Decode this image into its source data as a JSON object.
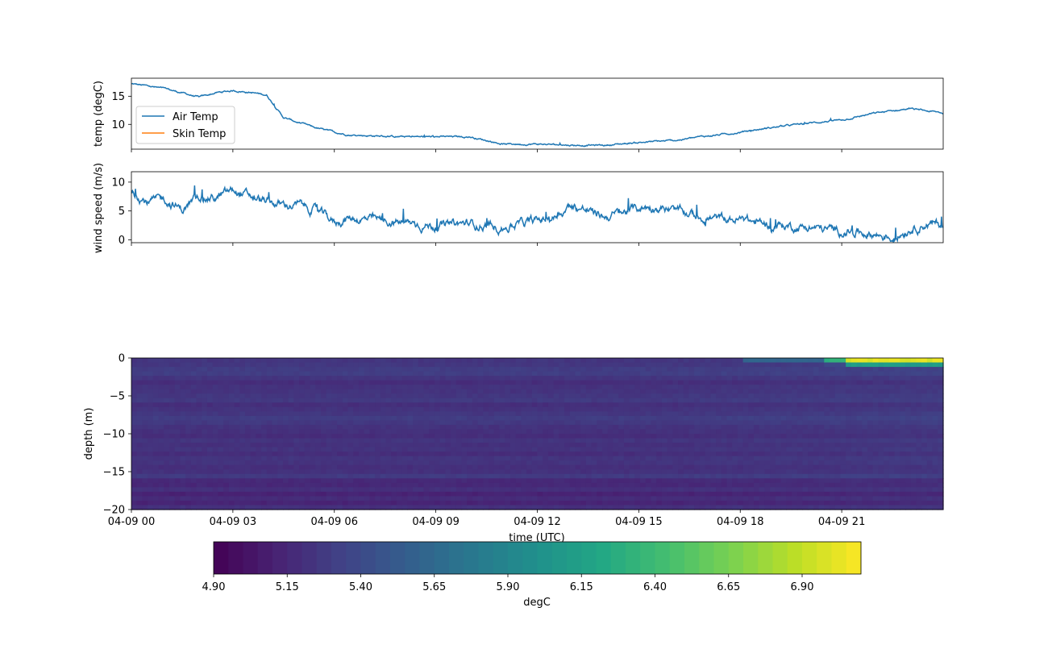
{
  "chart_data": [
    {
      "type": "line",
      "ylabel": "temp (degC)",
      "xlim": [
        "04-09 00",
        "04-10 00"
      ],
      "ylim": [
        5.6,
        18.2
      ],
      "yticks": [
        10,
        15
      ],
      "ytick_labels": [
        "10",
        "15"
      ],
      "legend": {
        "placement": "center-left",
        "entries": [
          "Air Temp",
          "Skin Temp"
        ]
      },
      "series": [
        {
          "name": "Air Temp",
          "color": "#1f77b4",
          "hour": [
            0,
            0.5,
            1,
            1.5,
            2,
            2.5,
            3,
            3.5,
            4,
            4.5,
            5,
            5.5,
            6,
            6.5,
            7,
            8,
            9,
            10,
            11,
            12,
            13,
            14,
            15,
            16,
            17,
            18,
            19,
            20,
            21,
            22,
            23,
            24
          ],
          "values": [
            17.2,
            16.8,
            16.3,
            15.6,
            14.8,
            15.6,
            16.0,
            15.7,
            15.2,
            11.2,
            10.2,
            9.3,
            8.6,
            8.1,
            8.0,
            7.8,
            7.8,
            7.8,
            6.5,
            6.5,
            6.3,
            6.3,
            6.8,
            7.1,
            7.9,
            8.6,
            9.5,
            10.2,
            10.8,
            12.0,
            12.8,
            12.0
          ]
        },
        {
          "name": "Skin Temp",
          "color": "#ff7f0e",
          "hour": [],
          "values": []
        }
      ]
    },
    {
      "type": "line",
      "ylabel": "wind speed (m/s)",
      "xlim": [
        "04-09 00",
        "04-10 00"
      ],
      "ylim": [
        -0.5,
        11.8
      ],
      "yticks": [
        0,
        5,
        10
      ],
      "ytick_labels": [
        "0",
        "5",
        "10"
      ],
      "series": [
        {
          "name": "",
          "color": "#1f77b4",
          "hour": [
            0,
            0.5,
            1,
            1.5,
            2,
            2.5,
            3,
            3.5,
            4,
            4.5,
            5,
            5.5,
            6,
            6.5,
            7,
            8,
            9,
            10,
            11,
            12,
            12.5,
            13,
            13.5,
            14,
            14.5,
            15,
            15.5,
            16,
            17,
            18,
            19,
            20,
            21,
            21.5,
            22,
            22.5,
            23,
            23.5,
            24
          ],
          "values": [
            8.5,
            6.5,
            7.0,
            5.2,
            7.5,
            7.2,
            8.5,
            7.5,
            6.5,
            6.0,
            6.0,
            5.0,
            3.0,
            3.8,
            3.5,
            3.0,
            2.4,
            2.8,
            2.2,
            3.2,
            4.0,
            6.0,
            5.0,
            4.0,
            4.6,
            5.5,
            5.8,
            5.0,
            3.8,
            3.4,
            2.5,
            2.2,
            1.5,
            1.4,
            1.0,
            0.3,
            2.0,
            2.8,
            2.5
          ]
        }
      ]
    },
    {
      "type": "heatmap",
      "ylabel": "depth (m)",
      "xlabel": "time (UTC)",
      "xlim": [
        "04-09 00",
        "04-10 00"
      ],
      "xticks": [
        "04-09 00",
        "04-09 03",
        "04-09 06",
        "04-09 09",
        "04-09 12",
        "04-09 15",
        "04-09 18",
        "04-09 21"
      ],
      "ylim": [
        -20,
        0
      ],
      "yticks": [
        0,
        -5,
        -10,
        -15,
        -20
      ],
      "ytick_labels": [
        "0",
        "−5",
        "−10",
        "−15",
        "−20"
      ],
      "colormap": "viridis",
      "value_range": [
        4.9,
        7.1
      ],
      "description_of_values": {
        "background_degC": 5.25,
        "surface_warming_degC": 7.0,
        "surface_warming_start_hour": 20.5
      },
      "colorbar": {
        "label": "degC",
        "ticks": [
          4.9,
          5.15,
          5.4,
          5.65,
          5.9,
          6.15,
          6.4,
          6.65,
          6.9
        ],
        "tick_labels": [
          "4.90",
          "5.15",
          "5.40",
          "5.65",
          "5.90",
          "6.15",
          "6.40",
          "6.65",
          "6.90"
        ]
      }
    }
  ]
}
